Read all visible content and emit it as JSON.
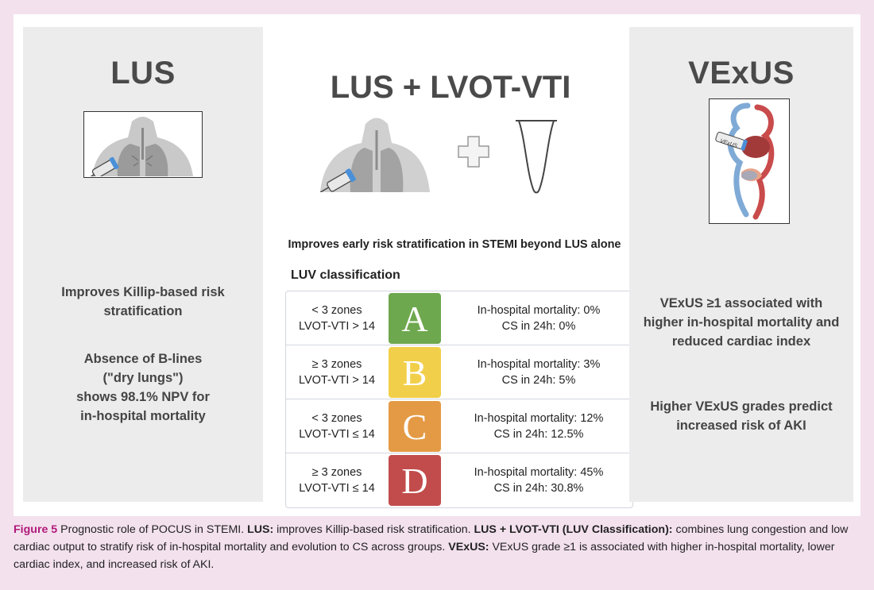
{
  "lus_panel": {
    "title": "LUS",
    "text1": "Improves Killip-based risk\nstratification",
    "text2": "Absence of B-lines\n(\"dry lungs\")\nshows 98.1% NPV for\nin-hospital mortality"
  },
  "center_panel": {
    "title": "LUS + LVOT-VTI",
    "subtitle": "Improves early risk stratification in STEMI beyond LUS alone",
    "table_heading": "LUV classification",
    "rows": [
      {
        "criteria1": "< 3 zones",
        "criteria2": "LVOT-VTI > 14",
        "grade": "A",
        "color": "#6ea84e",
        "outcome1": "In-hospital mortality: 0%",
        "outcome2": "CS in 24h: 0%"
      },
      {
        "criteria1": "≥ 3 zones",
        "criteria2": "LVOT-VTI > 14",
        "grade": "B",
        "color": "#f2cf4a",
        "outcome1": "In-hospital mortality: 3%",
        "outcome2": "CS in 24h: 5%"
      },
      {
        "criteria1": "< 3 zones",
        "criteria2": "LVOT-VTI ≤ 14",
        "grade": "C",
        "color": "#e49a45",
        "outcome1": "In-hospital mortality: 12%",
        "outcome2": "CS in 24h: 12.5%"
      },
      {
        "criteria1": "≥ 3 zones",
        "criteria2": "LVOT-VTI ≤ 14",
        "grade": "D",
        "color": "#c24c4c",
        "outcome1": "In-hospital mortality: 45%",
        "outcome2": "CS in 24h: 30.8%"
      }
    ]
  },
  "vexus_panel": {
    "title": "VExUS",
    "probe_label": "VExUS",
    "text1": "VExUS ≥1 associated with\nhigher in-hospital mortality and\nreduced cardiac index",
    "text2": "Higher VExUS grades predict\nincreased risk of AKI"
  },
  "caption": {
    "figure_label": "Figure 5",
    "intro": " Prognostic role of POCUS in STEMI. ",
    "lus_label": "LUS:",
    "lus_text": " improves Killip-based risk stratification. ",
    "luv_label": "LUS + LVOT-VTI (LUV Classification):",
    "luv_text": " combines lung congestion and low cardiac output to stratify risk of in-hospital mortality and evolution to CS across groups. ",
    "vexus_label": "VExUS:",
    "vexus_text": " VExUS grade ≥1 is associated with higher in-hospital mortality, lower cardiac index, and increased risk of AKI."
  },
  "colors": {
    "grade_a": "#6ea84e",
    "grade_b": "#f2cf4a",
    "grade_c": "#e49a45",
    "grade_d": "#c24c4c",
    "caption_accent": "#b0197a",
    "background": "#f3e1ee"
  },
  "icons": [
    "chest-ultrasound-icon",
    "plus-icon",
    "lvot-vti-waveform-icon",
    "vexus-venous-system-icon"
  ]
}
